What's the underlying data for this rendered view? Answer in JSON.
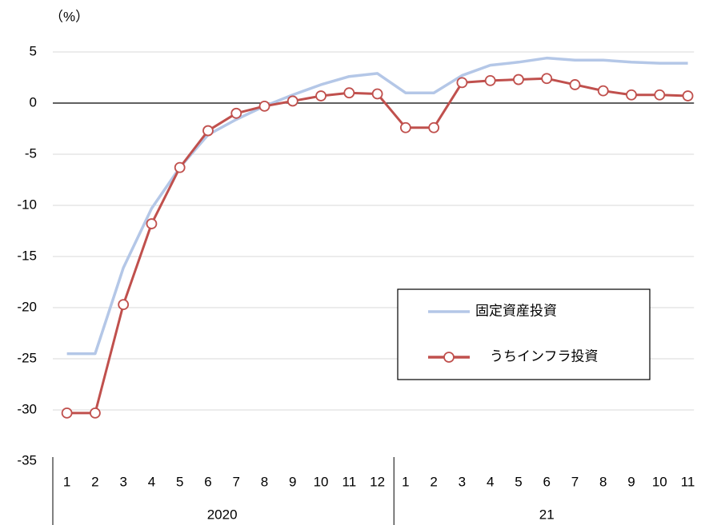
{
  "chart_data": {
    "type": "line",
    "unit_label": "（%）",
    "categories": [
      "1",
      "2",
      "3",
      "4",
      "5",
      "6",
      "7",
      "8",
      "9",
      "10",
      "11",
      "12",
      "1",
      "2",
      "3",
      "4",
      "5",
      "6",
      "7",
      "8",
      "9",
      "10",
      "11"
    ],
    "year_groups": [
      {
        "label": "2020",
        "span": 12
      },
      {
        "label": "21",
        "span": 11
      }
    ],
    "series": [
      {
        "name": "固定資産投資",
        "color": "#b4c7e7",
        "marker": false,
        "values": [
          -24.5,
          -24.5,
          -16.1,
          -10.3,
          -6.3,
          -3.1,
          -1.6,
          -0.3,
          0.8,
          1.8,
          2.6,
          2.9,
          1.0,
          1.0,
          2.7,
          3.7,
          4.0,
          4.4,
          4.2,
          4.2,
          4.0,
          3.9,
          3.9
        ]
      },
      {
        "name": "うちインフラ投資",
        "color": "#c0504d",
        "marker": true,
        "values": [
          -30.3,
          -30.3,
          -19.7,
          -11.8,
          -6.3,
          -2.7,
          -1.0,
          -0.3,
          0.2,
          0.7,
          1.0,
          0.9,
          -2.4,
          -2.4,
          2.0,
          2.2,
          2.3,
          2.4,
          1.8,
          1.2,
          0.8,
          0.8,
          0.7
        ]
      }
    ],
    "ylim": [
      -35,
      5
    ],
    "yticks": [
      5,
      0,
      -5,
      -10,
      -15,
      -20,
      -25,
      -30,
      -35
    ],
    "grid": true,
    "legend": "lower right"
  }
}
